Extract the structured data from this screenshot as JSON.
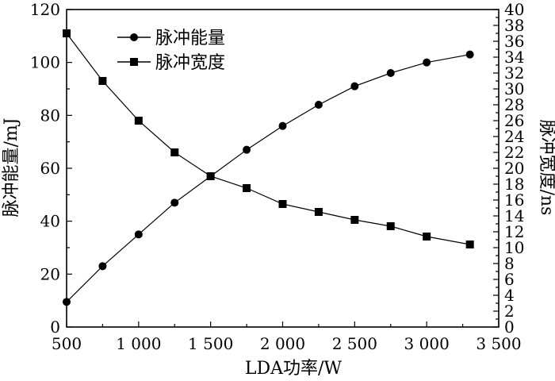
{
  "chart_data": {
    "type": "line",
    "title": "",
    "xlabel": "LDA功率/W",
    "ylabel_left": "脉冲能量/mJ",
    "ylabel_right": "脉冲宽度/ns",
    "xlim": [
      500,
      3500
    ],
    "ylim_left": [
      0,
      120
    ],
    "ylim_right": [
      0,
      40
    ],
    "x_ticks": [
      500,
      1000,
      1500,
      2000,
      2500,
      3000,
      3500
    ],
    "x_tick_labels": [
      "500",
      "1 000",
      "1 500",
      "2 000",
      "2 500",
      "3 000",
      "3 500"
    ],
    "y_left_ticks": [
      0,
      20,
      40,
      60,
      80,
      100,
      120
    ],
    "y_left_tick_labels": [
      "0",
      "20",
      "40",
      "60",
      "80",
      "100",
      "120"
    ],
    "y_right_ticks": [
      0,
      2,
      4,
      6,
      8,
      10,
      12,
      14,
      16,
      18,
      20,
      22,
      24,
      26,
      28,
      30,
      32,
      34,
      36,
      38,
      40
    ],
    "y_right_tick_labels": [
      "0",
      "2",
      "4",
      "6",
      "8",
      "10",
      "12",
      "14",
      "16",
      "18",
      "20",
      "22",
      "24",
      "26",
      "28",
      "30",
      "32",
      "34",
      "36",
      "38",
      "40"
    ],
    "grid": false,
    "legend_position": "top-left",
    "series": [
      {
        "name": "脉冲能量",
        "axis": "left",
        "marker": "circle",
        "color": "#000000",
        "x": [
          500,
          750,
          1000,
          1250,
          1500,
          1750,
          2000,
          2250,
          2500,
          2750,
          3000,
          3300
        ],
        "y": [
          9.5,
          23,
          35,
          47,
          57,
          67,
          76,
          84,
          91,
          96,
          100,
          103
        ]
      },
      {
        "name": "脉冲宽度",
        "axis": "right",
        "marker": "square",
        "color": "#000000",
        "x": [
          500,
          750,
          1000,
          1250,
          1500,
          1750,
          2000,
          2250,
          2500,
          2750,
          3000,
          3300
        ],
        "y": [
          37,
          31,
          26,
          22,
          19,
          17.5,
          15.5,
          14.5,
          13.5,
          12.7,
          11.4,
          10.4
        ]
      }
    ]
  }
}
